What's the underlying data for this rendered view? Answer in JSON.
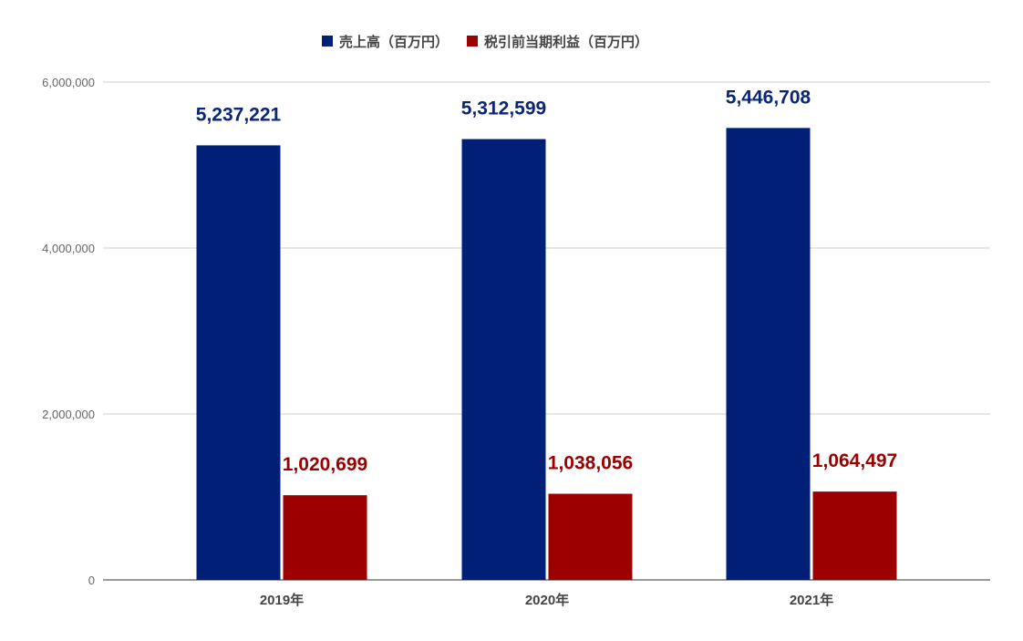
{
  "chart_data": {
    "type": "bar",
    "categories": [
      "2019年",
      "2020年",
      "2021年"
    ],
    "series": [
      {
        "name": "売上高（百万円）",
        "color": "#002078",
        "label_color": "#0a2674",
        "values": [
          5237221,
          5312599,
          5446708
        ],
        "labels": [
          "5,237,221",
          "5,312,599",
          "5,446,708"
        ]
      },
      {
        "name": "税引前当期利益（百万円）",
        "color": "#9c0000",
        "label_color": "#9a0000",
        "values": [
          1020699,
          1038056,
          1064497
        ],
        "labels": [
          "1,020,699",
          "1,038,056",
          "1,064,497"
        ]
      }
    ],
    "ylim": [
      0,
      6000000
    ],
    "yticks": [
      0,
      2000000,
      4000000,
      6000000
    ],
    "ytick_labels": [
      "0",
      "2,000,000",
      "4,000,000",
      "6,000,000"
    ],
    "grid": true,
    "legend_position": "top-center",
    "title": "",
    "xlabel": "",
    "ylabel": ""
  }
}
